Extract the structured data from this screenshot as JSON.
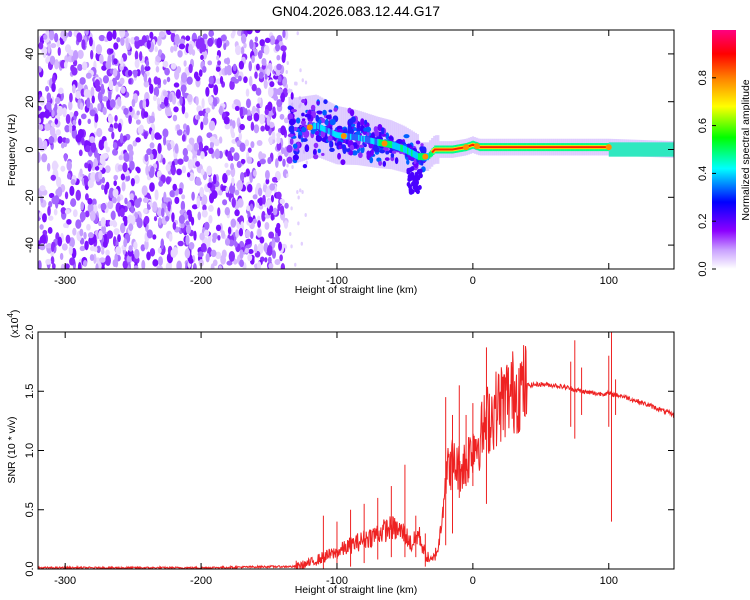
{
  "title": "GN04.2026.083.12.44.G17",
  "chart_data": [
    {
      "type": "heatmap",
      "name": "spectrogram",
      "xlabel": "Height of straight line (km)",
      "ylabel": "Frequency (Hz)",
      "xlim": [
        -320,
        148
      ],
      "ylim": [
        -50,
        50
      ],
      "x_ticks": [
        -300,
        -200,
        -100,
        0,
        100
      ],
      "x_tick_labels": [
        "-300",
        "-200",
        "-100",
        "0",
        "100"
      ],
      "y_ticks": [
        -40,
        -20,
        0,
        20,
        40
      ],
      "y_tick_labels": [
        "-40",
        "-20",
        "0",
        "20",
        "40"
      ],
      "noise_region_x": [
        -320,
        -137
      ],
      "signal_track": [
        {
          "x": -130,
          "f": 8
        },
        {
          "x": -115,
          "f": 10
        },
        {
          "x": -100,
          "f": 6
        },
        {
          "x": -85,
          "f": 5
        },
        {
          "x": -70,
          "f": 3
        },
        {
          "x": -60,
          "f": 2
        },
        {
          "x": -50,
          "f": 0
        },
        {
          "x": -40,
          "f": -3
        },
        {
          "x": -33,
          "f": -3
        },
        {
          "x": -28,
          "f": 0
        },
        {
          "x": -15,
          "f": 0
        },
        {
          "x": -5,
          "f": 1
        },
        {
          "x": 0,
          "f": 2
        },
        {
          "x": 5,
          "f": 1
        },
        {
          "x": 100,
          "f": 1
        },
        {
          "x": 148,
          "f": 0
        }
      ],
      "colorbar": {
        "label": "Normalized spectral amplitude",
        "range": [
          0,
          1
        ],
        "ticks": [
          0,
          0.2,
          0.4,
          0.6,
          0.8
        ],
        "tick_labels": [
          "0.0",
          "0.2",
          "0.4",
          "0.6",
          "0.8"
        ],
        "colormap": [
          "#ffffff",
          "#8c00ff",
          "#0000ff",
          "#00ffff",
          "#00ff00",
          "#ffff00",
          "#ff8000",
          "#ff0000",
          "#ff0080"
        ]
      },
      "grid": false
    },
    {
      "type": "line",
      "name": "snr",
      "xlabel": "Height of straight line (km)",
      "ylabel": "SNR (10 * v/v)",
      "y_scale_label": "(x10",
      "y_scale_exp": "4",
      "y_scale_close": ")",
      "xlim": [
        -320,
        148
      ],
      "ylim": [
        0,
        2.0
      ],
      "x_ticks": [
        -300,
        -200,
        -100,
        0,
        100
      ],
      "x_tick_labels": [
        "-300",
        "-200",
        "-100",
        "0",
        "100"
      ],
      "y_ticks": [
        0,
        0.5,
        1.0,
        1.5,
        2.0
      ],
      "y_tick_labels": [
        "0.0",
        "0.5",
        "1.0",
        "1.5",
        "2.0"
      ],
      "line_color": "#ee2222",
      "series": [
        {
          "x": [
            -320,
            -250,
            -200,
            -150,
            -130,
            -120,
            -110,
            -100,
            -90,
            -80,
            -70,
            -60,
            -50,
            -45,
            -40,
            -35,
            -30,
            -25,
            -20,
            -15,
            -10,
            -5,
            0,
            5,
            10,
            20,
            30,
            40,
            50,
            60,
            70,
            80,
            90,
            100,
            110,
            120,
            130,
            148
          ],
          "values": [
            0.01,
            0.01,
            0.01,
            0.02,
            0.02,
            0.05,
            0.1,
            0.14,
            0.2,
            0.25,
            0.3,
            0.35,
            0.3,
            0.2,
            0.3,
            0.12,
            0.06,
            0.2,
            0.8,
            0.9,
            0.85,
            0.9,
            1.05,
            1.1,
            1.25,
            1.4,
            1.5,
            1.55,
            1.56,
            1.55,
            1.53,
            1.5,
            1.48,
            1.48,
            1.46,
            1.42,
            1.38,
            1.3
          ]
        }
      ],
      "spikes": [
        {
          "x": -130,
          "lo": 0.0,
          "hi": 0.07
        },
        {
          "x": -110,
          "lo": 0.0,
          "hi": 0.45
        },
        {
          "x": -100,
          "lo": 0.0,
          "hi": 0.4
        },
        {
          "x": -90,
          "lo": 0.02,
          "hi": 0.5
        },
        {
          "x": -80,
          "lo": 0.05,
          "hi": 0.55
        },
        {
          "x": -70,
          "lo": 0.08,
          "hi": 0.6
        },
        {
          "x": -60,
          "lo": 0.1,
          "hi": 0.7
        },
        {
          "x": -50,
          "lo": 0.1,
          "hi": 0.88
        },
        {
          "x": -42,
          "lo": 0.1,
          "hi": 0.45
        },
        {
          "x": -35,
          "lo": 0.02,
          "hi": 0.3
        },
        {
          "x": -20,
          "lo": 0.2,
          "hi": 1.45
        },
        {
          "x": -15,
          "lo": 0.3,
          "hi": 1.3
        },
        {
          "x": -10,
          "lo": 0.6,
          "hi": 1.55
        },
        {
          "x": -5,
          "lo": 0.7,
          "hi": 1.3
        },
        {
          "x": 0,
          "lo": 0.7,
          "hi": 1.4
        },
        {
          "x": 10,
          "lo": 0.55,
          "hi": 1.87
        },
        {
          "x": 72,
          "lo": 1.2,
          "hi": 1.75
        },
        {
          "x": 75,
          "lo": 1.1,
          "hi": 1.93
        },
        {
          "x": 80,
          "lo": 1.3,
          "hi": 1.7
        },
        {
          "x": 100,
          "lo": 1.2,
          "hi": 1.8
        },
        {
          "x": 102,
          "lo": 0.4,
          "hi": 2.0
        },
        {
          "x": 105,
          "lo": 1.3,
          "hi": 1.6
        }
      ],
      "grid": false
    }
  ]
}
